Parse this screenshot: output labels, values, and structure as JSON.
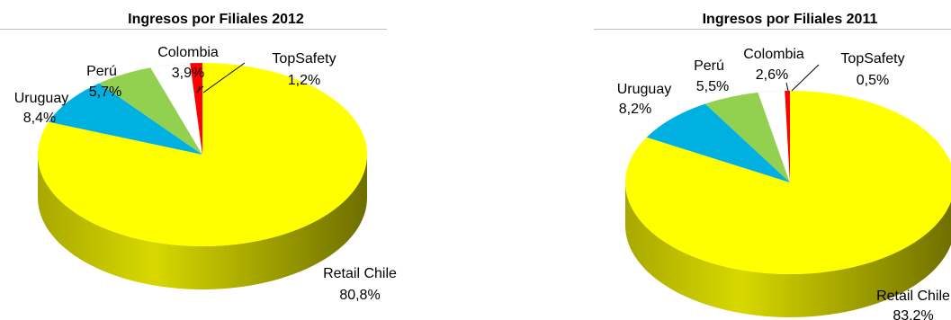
{
  "chart_data": [
    {
      "type": "pie",
      "title": "Ingresos por Filiales 2012",
      "categories": [
        "Retail Chile",
        "Uruguay",
        "Perú",
        "Colombia",
        "TopSafety"
      ],
      "values": [
        80.8,
        8.4,
        5.7,
        3.9,
        1.2
      ],
      "value_labels": [
        "80,8%",
        "8,4%",
        "5,7%",
        "3,9%",
        "1,2%"
      ],
      "colors": [
        "#ffff00",
        "#00b0e0",
        "#92d050",
        "#ffffff",
        "#ff0000"
      ],
      "style": "3d"
    },
    {
      "type": "pie",
      "title": "Ingresos por Filiales 2011",
      "categories": [
        "Retail Chile",
        "Uruguay",
        "Perú",
        "Colombia",
        "TopSafety"
      ],
      "values": [
        83.2,
        8.2,
        5.5,
        2.6,
        0.5
      ],
      "value_labels": [
        "83,2%",
        "8,2%",
        "5,5%",
        "2,6%",
        "0,5%"
      ],
      "colors": [
        "#ffff00",
        "#00b0e0",
        "#92d050",
        "#ffffff",
        "#ff0000"
      ],
      "style": "3d"
    }
  ]
}
